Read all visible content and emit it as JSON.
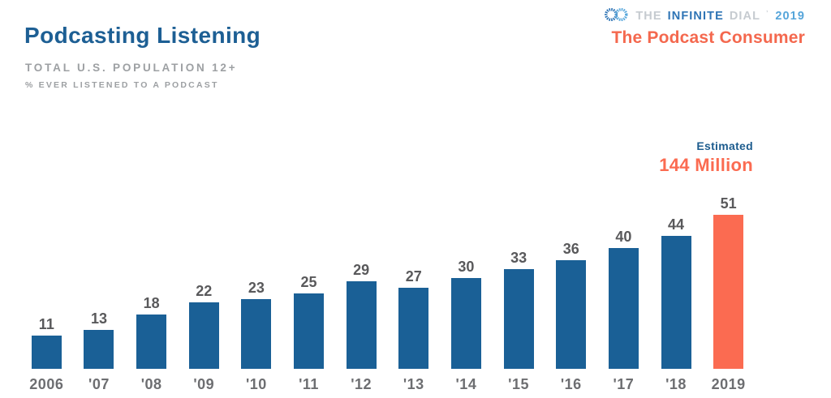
{
  "header": {
    "title": "Podcasting Listening",
    "subtitle": "TOTAL U.S. POPULATION 12+",
    "note": "% EVER LISTENED TO A PODCAST"
  },
  "brand": {
    "logo_the": "THE",
    "logo_infinite": "INFINITE",
    "logo_dial": "DIAL",
    "logo_tm": "’",
    "logo_year": "2019",
    "report_title": "The Podcast Consumer"
  },
  "annotation": {
    "label": "Estimated",
    "value": "144 Million"
  },
  "colors": {
    "title_blue": "#1D5F94",
    "logo_blue": "#2E74B5",
    "logo_light_blue": "#56A5DA",
    "brand_orange": "#F4684E",
    "bar_blue": "#1A6096",
    "highlight_orange": "#FB6B51",
    "label_gray": "#9DA0A3",
    "value_gray": "#59595B",
    "year_gray": "#6D6E71"
  },
  "chart_data": {
    "type": "bar",
    "title": "Podcasting Listening",
    "subtitle": "TOTAL U.S. POPULATION 12+",
    "note": "% EVER LISTENED TO A PODCAST",
    "categories": [
      "2006",
      "'07",
      "'08",
      "'09",
      "'10",
      "'11",
      "'12",
      "'13",
      "'14",
      "'15",
      "'16",
      "'17",
      "'18",
      "2019"
    ],
    "values": [
      11,
      13,
      18,
      22,
      23,
      25,
      29,
      27,
      30,
      33,
      36,
      40,
      44,
      51
    ],
    "unit": "percent",
    "xlabel": "",
    "ylabel": "% ever listened to a podcast",
    "ylim": [
      0,
      55
    ],
    "grid": false,
    "legend": false,
    "data_labels": true,
    "bar_color": "#1A6096",
    "highlight_index": 13,
    "highlight_color": "#FB6B51",
    "annotation": {
      "label": "Estimated",
      "value": "144 Million",
      "applies_to": "2019"
    }
  }
}
